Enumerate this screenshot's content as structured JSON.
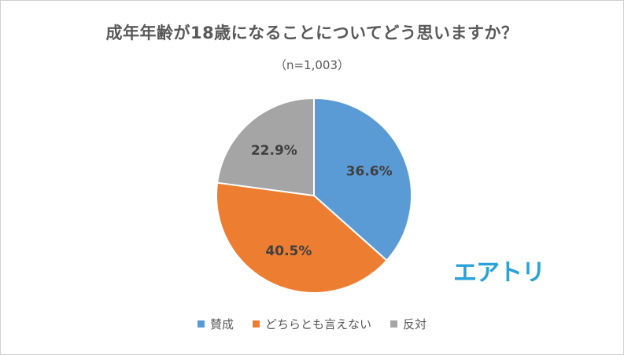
{
  "chart_data": {
    "type": "pie",
    "title": "成年年齢が18歳になることについてどう思いますか？",
    "subtitle": "（n=1,003）",
    "categories": [
      "賛成",
      "どちらとも言えない",
      "反対"
    ],
    "values": [
      36.6,
      40.5,
      22.9
    ],
    "labels": [
      "36.6%",
      "40.5%",
      "22.9%"
    ],
    "colors": [
      "#5b9bd5",
      "#ed7d31",
      "#a5a5a5"
    ],
    "legend_position": "bottom"
  },
  "brand": {
    "logo_text": "エアトリ",
    "logo_color": "#29a3d9"
  }
}
